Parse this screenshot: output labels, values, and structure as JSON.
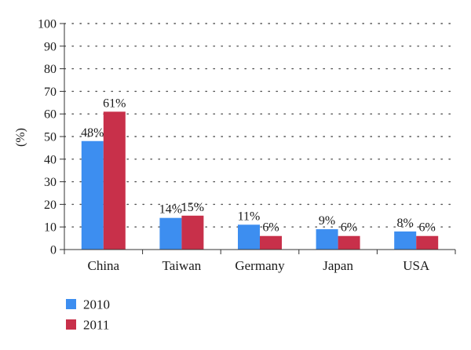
{
  "chart_data": {
    "type": "bar",
    "categories": [
      "China",
      "Taiwan",
      "Germany",
      "Japan",
      "USA"
    ],
    "series": [
      {
        "name": "2010",
        "values": [
          48,
          14,
          11,
          9,
          8
        ],
        "labels": [
          "48%",
          "14%",
          "11%",
          "9%",
          "8%"
        ],
        "color": "#3d8ef0"
      },
      {
        "name": "2011",
        "values": [
          61,
          15,
          6,
          6,
          6
        ],
        "labels": [
          "61%",
          "15%",
          "6%",
          "6%",
          "6%"
        ],
        "color": "#c8304a"
      }
    ],
    "ylabel": "(%)",
    "ylim": [
      0,
      100
    ],
    "yticks": [
      0,
      10,
      20,
      30,
      40,
      50,
      60,
      70,
      80,
      90,
      100
    ],
    "ytick_labels": [
      "0",
      "10",
      "20",
      "30",
      "40",
      "50",
      "60",
      "70",
      "80",
      "90",
      "100"
    ],
    "grid": "dotted horizontal",
    "legend_position": "bottom-left"
  }
}
